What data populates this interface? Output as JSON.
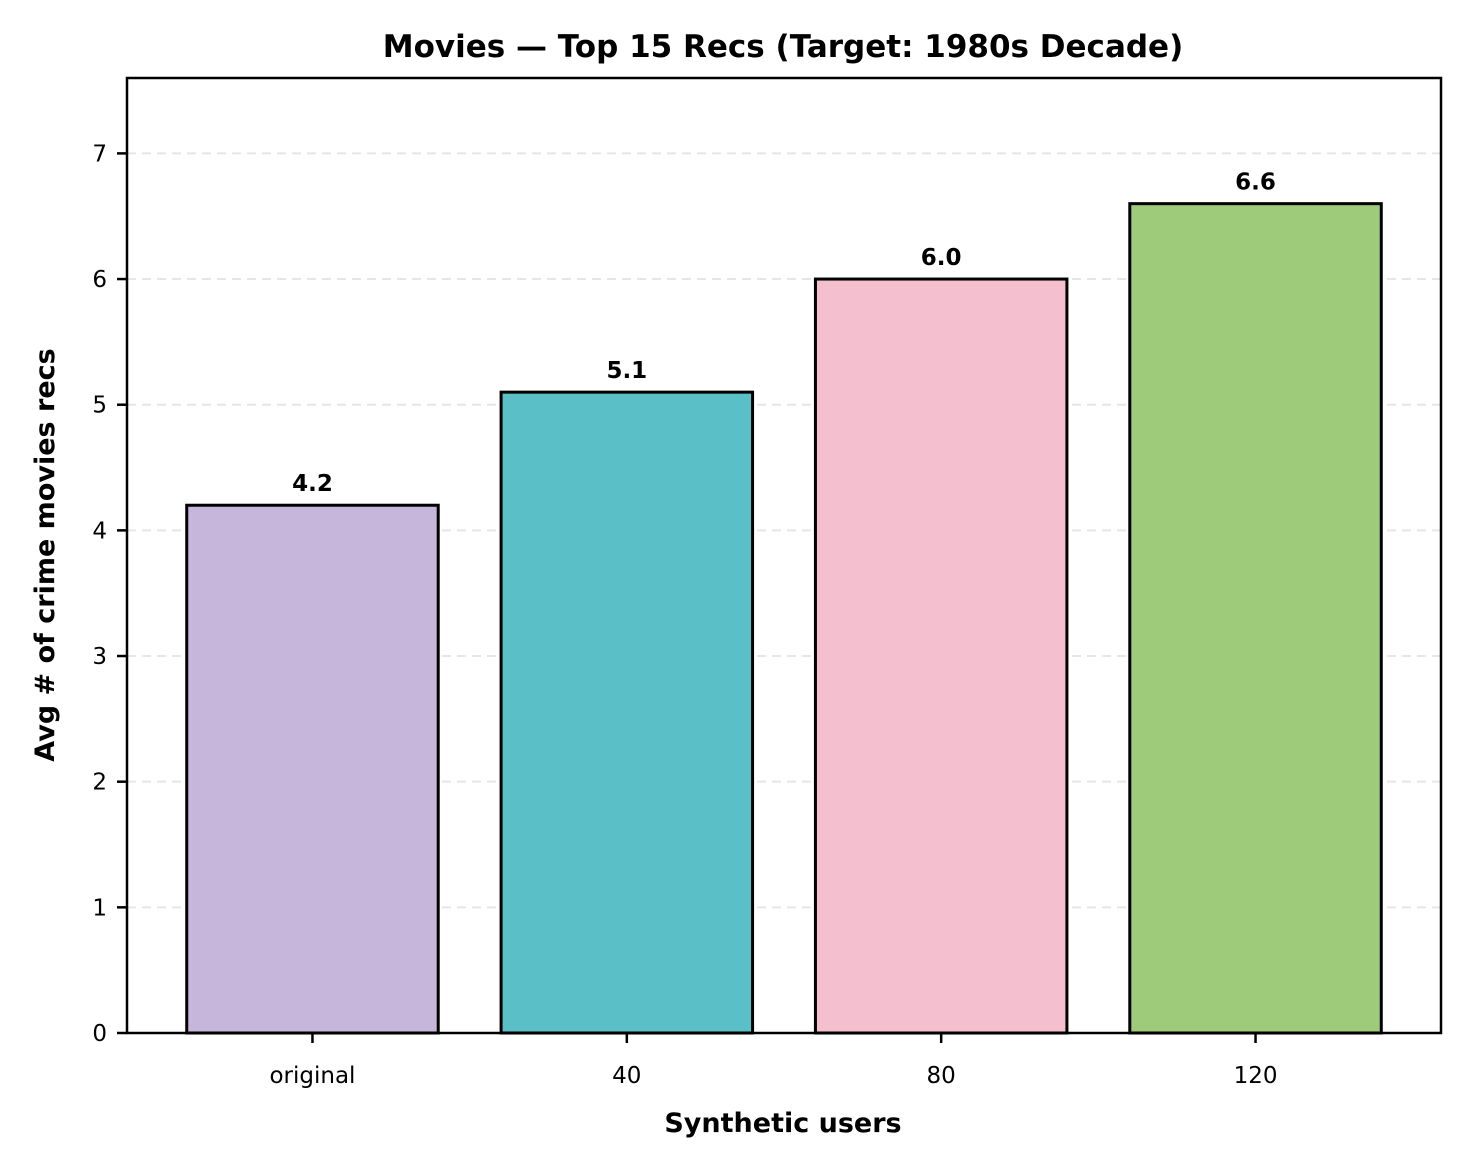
{
  "chart_data": {
    "type": "bar",
    "title": "Movies — Top 15 Recs (Target: 1980s Decade)",
    "xlabel": "Synthetic users",
    "ylabel": "Avg # of crime movies recs",
    "categories": [
      "original",
      "40",
      "80",
      "120"
    ],
    "values": [
      4.2,
      5.1,
      6.0,
      6.6
    ],
    "value_labels": [
      "4.2",
      "5.1",
      "6.0",
      "6.6"
    ],
    "colors": [
      "#c7b6db",
      "#5abfc6",
      "#f4c0d0",
      "#9ecb7a"
    ],
    "ylim": [
      0,
      7.6
    ],
    "yticks": [
      0,
      1,
      2,
      3,
      4,
      5,
      6,
      7
    ],
    "grid": "y-dashed",
    "legend": "none"
  }
}
